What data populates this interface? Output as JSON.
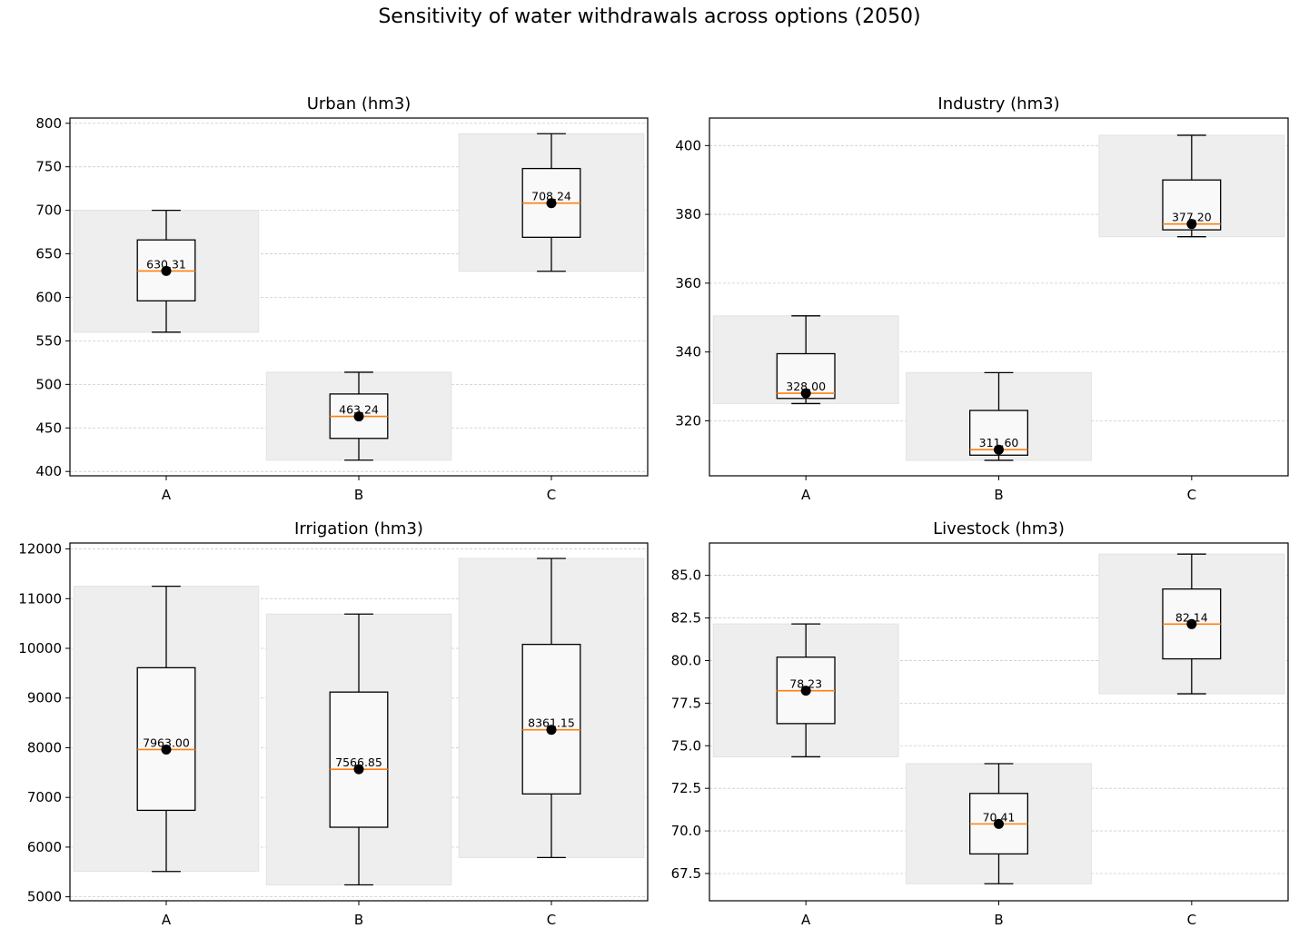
{
  "title": "Sensitivity of water withdrawals across options (2050)",
  "colors": {
    "range_band": "#eeeeee",
    "box_fill": "#f9f9f9",
    "median": "#ff7f0e",
    "mean_marker": "#000000",
    "grid": "#cccccc"
  },
  "chart_data": [
    {
      "type": "box",
      "title": "Urban (hm3)",
      "categories": [
        "A",
        "B",
        "C"
      ],
      "ylim": [
        395,
        806
      ],
      "yticks": [
        400,
        450,
        500,
        550,
        600,
        650,
        700,
        750,
        800
      ],
      "ytick_labels": [
        "400",
        "450",
        "500",
        "550",
        "600",
        "650",
        "700",
        "750",
        "800"
      ],
      "grid": "horizontal, dashed",
      "boxes": [
        {
          "min": 560,
          "q1": 596,
          "median": 630.31,
          "q3": 666,
          "max": 700,
          "mean": 630.31,
          "label": "630.31"
        },
        {
          "min": 413,
          "q1": 438,
          "median": 463.24,
          "q3": 489,
          "max": 514,
          "mean": 463.24,
          "label": "463.24"
        },
        {
          "min": 630,
          "q1": 669,
          "median": 708.24,
          "q3": 748,
          "max": 788,
          "mean": 708.24,
          "label": "708.24"
        }
      ]
    },
    {
      "type": "box",
      "title": "Industry (hm3)",
      "categories": [
        "A",
        "B",
        "C"
      ],
      "ylim": [
        304,
        408
      ],
      "yticks": [
        320,
        340,
        360,
        380,
        400
      ],
      "ytick_labels": [
        "320",
        "340",
        "360",
        "380",
        "400"
      ],
      "grid": "horizontal, dashed",
      "boxes": [
        {
          "min": 325,
          "q1": 326.5,
          "median": 328.0,
          "q3": 339.5,
          "max": 350.5,
          "mean": 328.0,
          "label": "328.00"
        },
        {
          "min": 308.5,
          "q1": 310,
          "median": 311.6,
          "q3": 323,
          "max": 334,
          "mean": 311.6,
          "label": "311.60"
        },
        {
          "min": 373.5,
          "q1": 375.5,
          "median": 377.2,
          "q3": 390,
          "max": 403,
          "mean": 377.2,
          "label": "377.20"
        }
      ]
    },
    {
      "type": "box",
      "title": "Irrigation (hm3)",
      "categories": [
        "A",
        "B",
        "C"
      ],
      "ylim": [
        4920,
        12120
      ],
      "yticks": [
        5000,
        6000,
        7000,
        8000,
        9000,
        10000,
        11000,
        12000
      ],
      "ytick_labels": [
        "5000",
        "6000",
        "7000",
        "8000",
        "9000",
        "10000",
        "11000",
        "12000"
      ],
      "grid": "horizontal, dashed",
      "boxes": [
        {
          "min": 5510,
          "q1": 6740,
          "median": 7963.0,
          "q3": 9610,
          "max": 11250,
          "mean": 7963.0,
          "label": "7963.00"
        },
        {
          "min": 5240,
          "q1": 6400,
          "median": 7566.85,
          "q3": 9120,
          "max": 10690,
          "mean": 7566.85,
          "label": "7566.85"
        },
        {
          "min": 5790,
          "q1": 7070,
          "median": 8361.15,
          "q3": 10080,
          "max": 11810,
          "mean": 8361.15,
          "label": "8361.15"
        }
      ]
    },
    {
      "type": "box",
      "title": "Livestock (hm3)",
      "categories": [
        "A",
        "B",
        "C"
      ],
      "ylim": [
        65.9,
        86.9
      ],
      "yticks": [
        67.5,
        70.0,
        72.5,
        75.0,
        77.5,
        80.0,
        82.5,
        85.0
      ],
      "ytick_labels": [
        "67.5",
        "70.0",
        "72.5",
        "75.0",
        "77.5",
        "80.0",
        "82.5",
        "85.0"
      ],
      "grid": "horizontal, dashed",
      "boxes": [
        {
          "min": 74.35,
          "q1": 76.3,
          "median": 78.23,
          "q3": 80.2,
          "max": 82.15,
          "mean": 78.23,
          "label": "78.23"
        },
        {
          "min": 66.9,
          "q1": 68.65,
          "median": 70.41,
          "q3": 72.2,
          "max": 73.95,
          "mean": 70.41,
          "label": "70.41"
        },
        {
          "min": 78.05,
          "q1": 80.1,
          "median": 82.14,
          "q3": 84.2,
          "max": 86.25,
          "mean": 82.14,
          "label": "82.14"
        }
      ]
    }
  ]
}
